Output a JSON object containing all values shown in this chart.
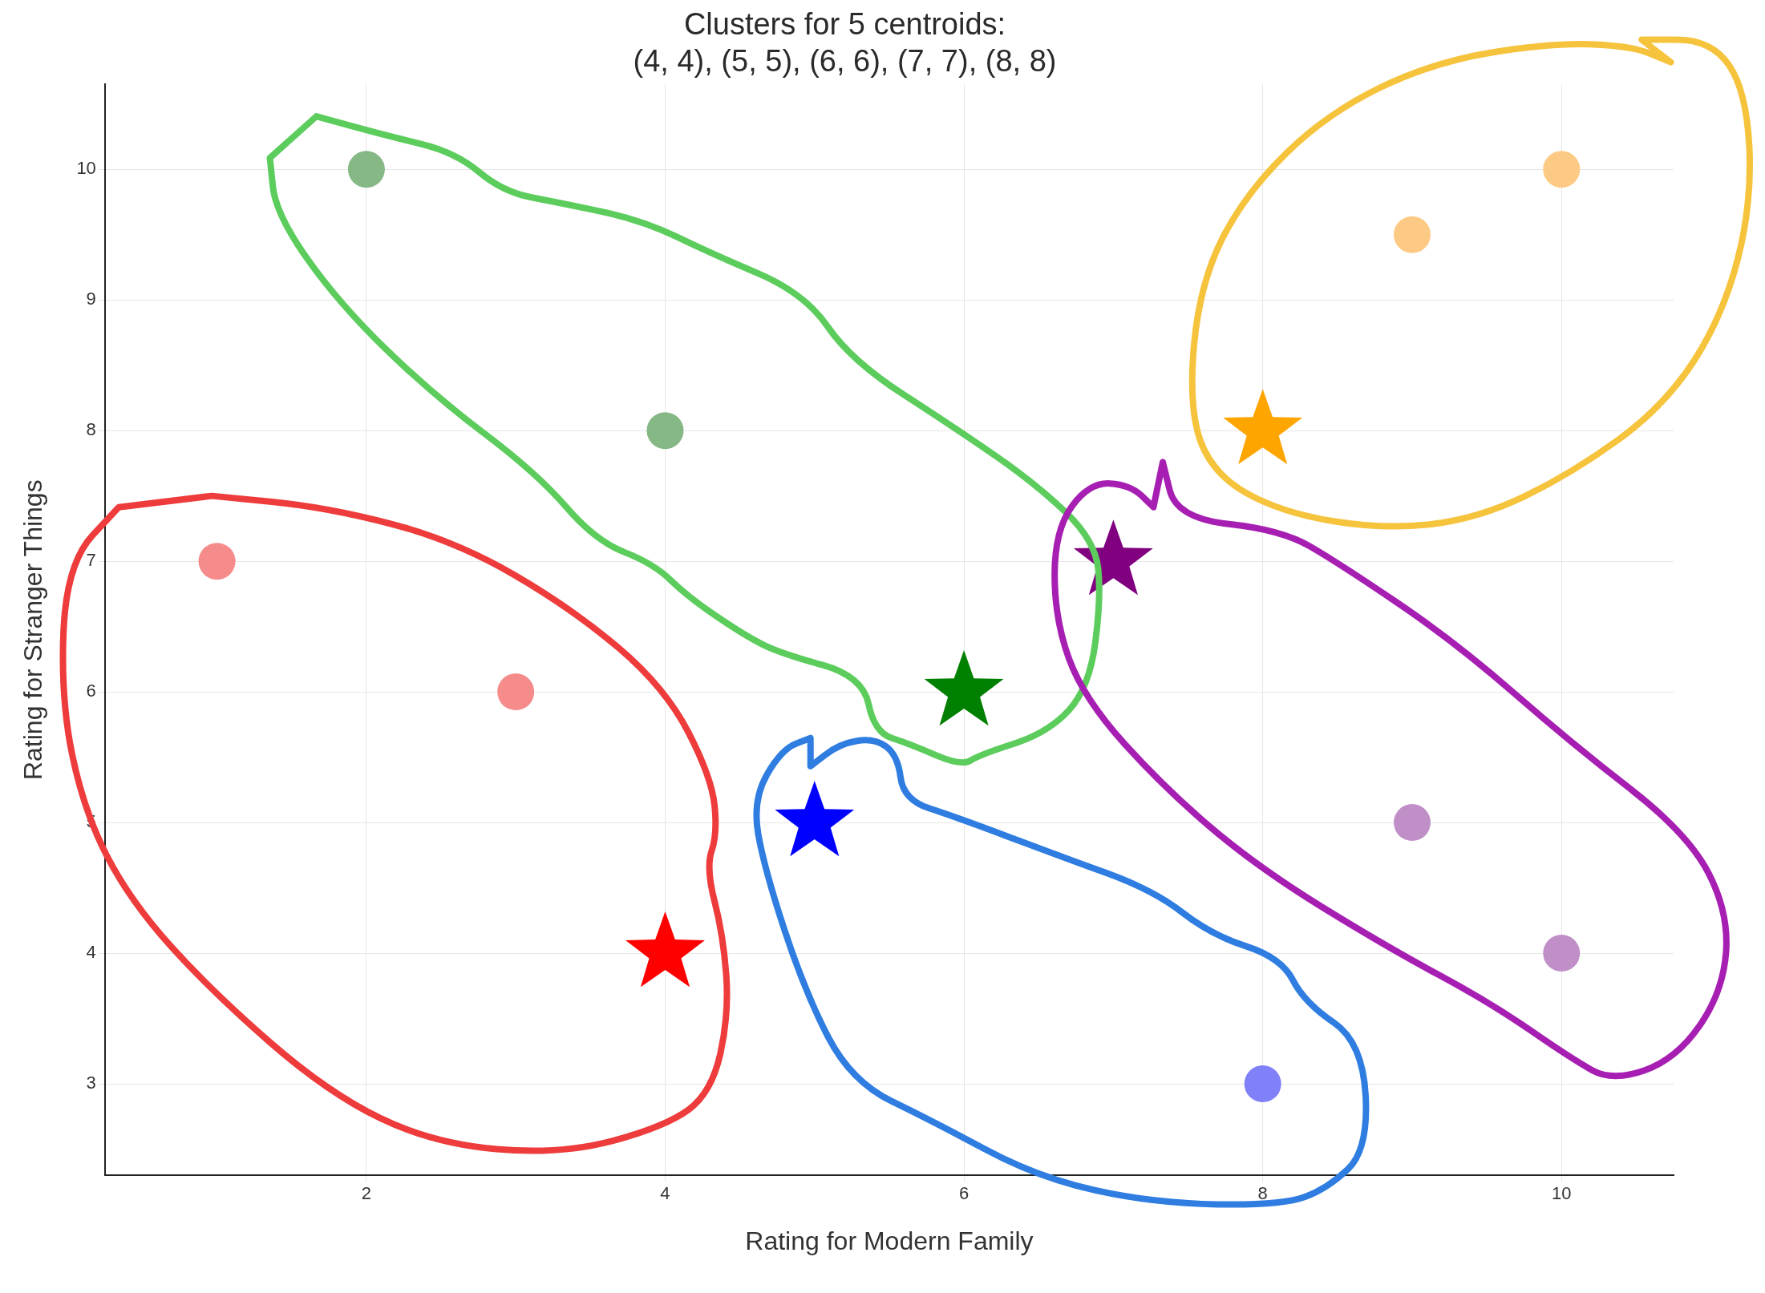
{
  "chart_data": {
    "type": "scatter",
    "title": "Clusters for 5 centroids:\n(4, 4), (5, 5), (6, 6), (7, 7), (8, 8)",
    "xlabel": "Rating for Modern Family",
    "ylabel": "Rating for Stranger Things",
    "xlim": [
      0.25,
      10.75
    ],
    "ylim": [
      2.3,
      10.65
    ],
    "xticks": [
      2,
      4,
      6,
      8,
      10
    ],
    "yticks": [
      3,
      4,
      5,
      6,
      7,
      8,
      9,
      10
    ],
    "grid": true,
    "legend": false,
    "series": [
      {
        "marker": "circle",
        "x": [
          1,
          3,
          2,
          4,
          9,
          10,
          9,
          10,
          8
        ],
        "values": [
          7,
          6,
          10,
          8,
          9.5,
          10,
          5,
          4,
          3
        ],
        "colors": [
          "#f58b8b",
          "#f58b8b",
          "#86b886",
          "#86b886",
          "#fcca84",
          "#fcca84",
          "#c08fc8",
          "#c08fc8",
          "#8080f8"
        ]
      },
      {
        "marker": "star",
        "x": [
          4,
          5,
          6,
          7,
          8
        ],
        "values": [
          4,
          5,
          6,
          7,
          8
        ],
        "colors": [
          "#ff0000",
          "#0000ff",
          "#008000",
          "#800080",
          "#ffa500"
        ]
      }
    ]
  }
}
